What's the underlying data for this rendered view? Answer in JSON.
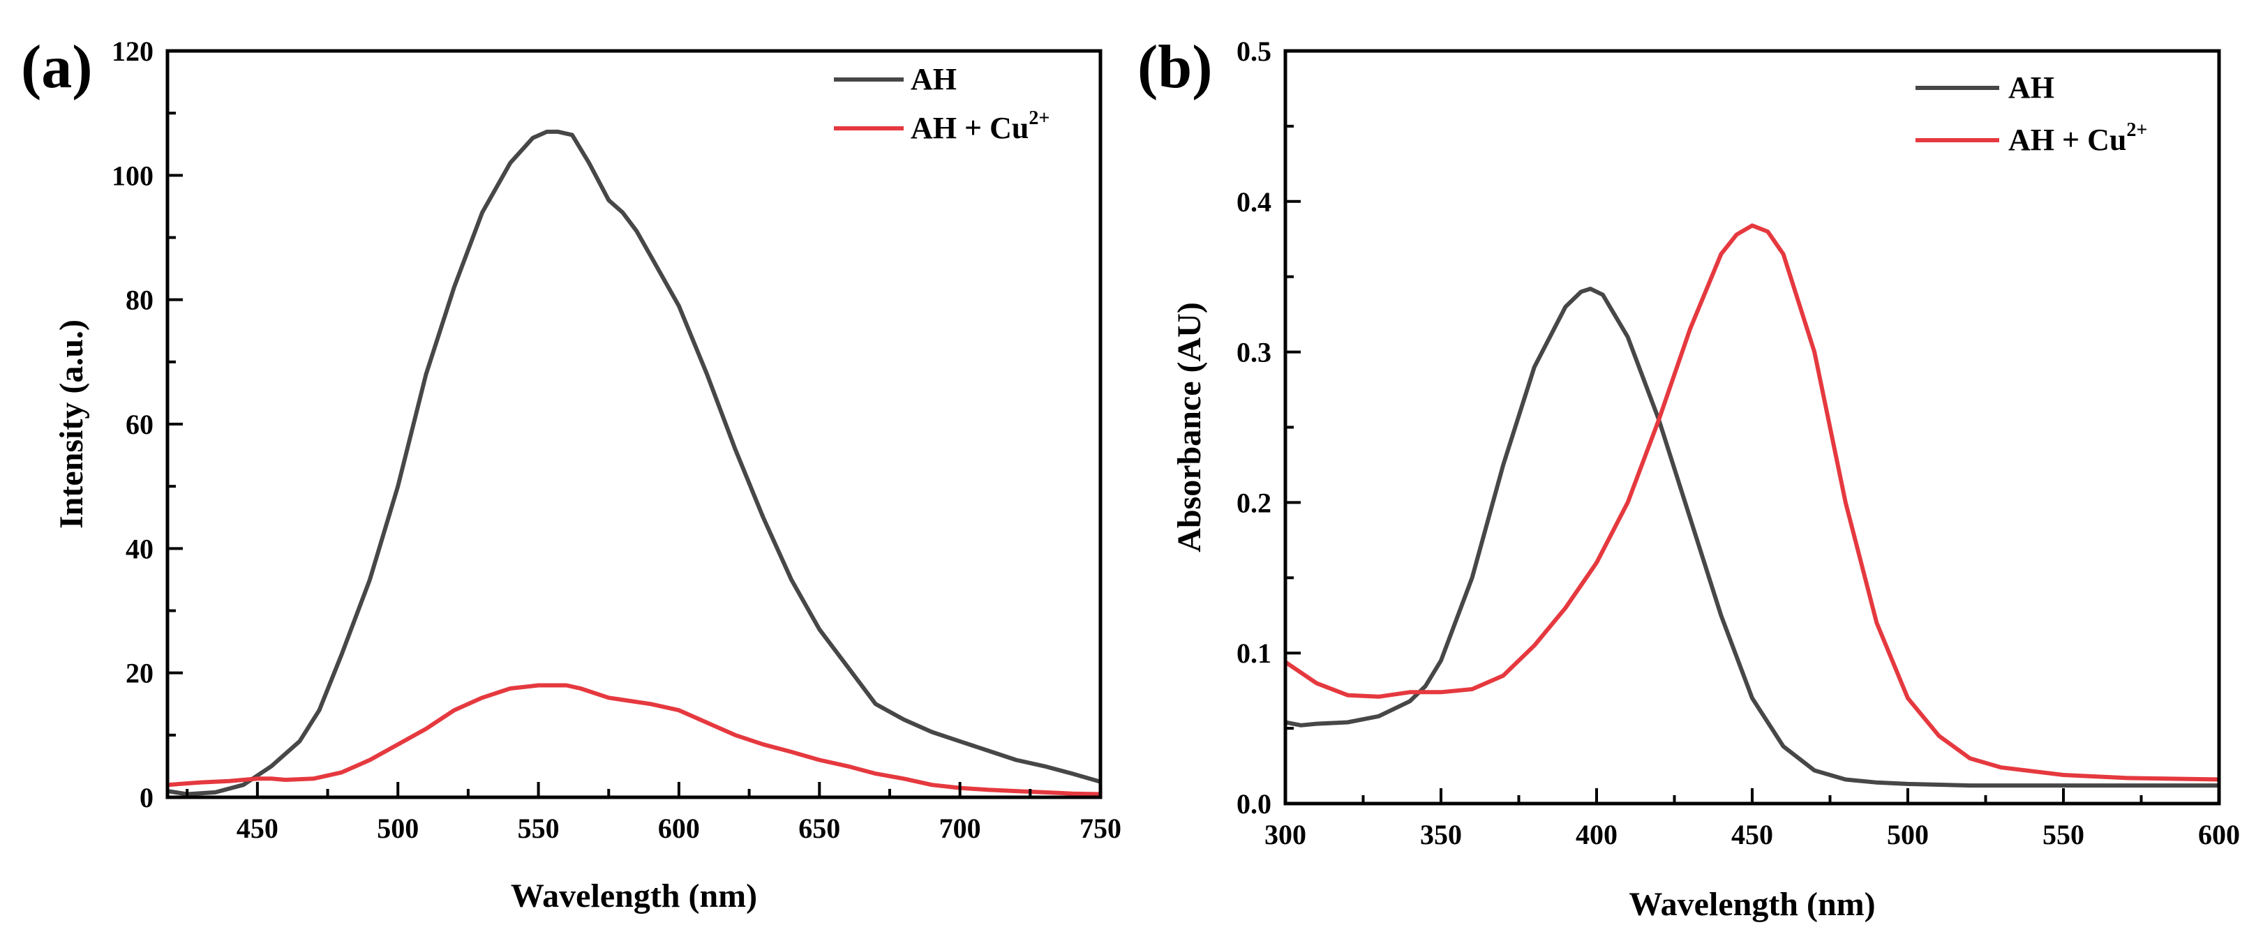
{
  "chart_data": [
    {
      "type": "line",
      "panel_label": "(a)",
      "title": "",
      "xlabel": "Wavelength (nm)",
      "ylabel": "Intensity (a.u.)",
      "xlim": [
        418,
        750
      ],
      "ylim": [
        0,
        120
      ],
      "x_ticks": [
        450,
        500,
        550,
        600,
        650,
        700,
        750
      ],
      "y_ticks": [
        0,
        20,
        40,
        60,
        80,
        100,
        120
      ],
      "x_minor_step": 25,
      "y_minor_step": 10,
      "legend_position": "top-right",
      "series": [
        {
          "name": "AH",
          "name_sup": "",
          "color": "#474747",
          "x": [
            418,
            425,
            435,
            445,
            455,
            465,
            472,
            480,
            490,
            500,
            510,
            520,
            530,
            540,
            548,
            553,
            557,
            562,
            568,
            575,
            580,
            585,
            590,
            600,
            610,
            620,
            630,
            640,
            650,
            660,
            670,
            680,
            690,
            700,
            710,
            720,
            730,
            740,
            750
          ],
          "y": [
            1,
            0.5,
            0.8,
            2,
            5,
            9,
            14,
            23,
            35,
            50,
            68,
            82,
            94,
            102,
            106,
            107,
            107,
            106.5,
            102,
            96,
            94,
            91,
            87,
            79,
            68,
            56,
            45,
            35,
            27,
            21,
            15,
            12.5,
            10.5,
            9,
            7.5,
            6,
            5,
            3.8,
            2.5
          ]
        },
        {
          "name": "AH + Cu",
          "name_sup": "2+",
          "color": "#e5393f",
          "x": [
            418,
            430,
            440,
            450,
            455,
            460,
            470,
            480,
            490,
            500,
            510,
            520,
            530,
            540,
            550,
            555,
            560,
            565,
            575,
            590,
            600,
            610,
            620,
            630,
            640,
            650,
            660,
            670,
            680,
            690,
            700,
            710,
            720,
            730,
            740,
            750
          ],
          "y": [
            2,
            2.4,
            2.6,
            3,
            3,
            2.8,
            3,
            4,
            6,
            8.5,
            11,
            14,
            16,
            17.5,
            18,
            18,
            18,
            17.5,
            16,
            15,
            14,
            12,
            10,
            8.5,
            7.3,
            6,
            5,
            3.8,
            3,
            2,
            1.5,
            1.2,
            1,
            0.8,
            0.6,
            0.5
          ]
        }
      ]
    },
    {
      "type": "line",
      "panel_label": "(b)",
      "title": "",
      "xlabel": "Wavelength (nm)",
      "ylabel": "Absorbance (AU)",
      "xlim": [
        300,
        600
      ],
      "ylim": [
        0,
        0.5
      ],
      "x_ticks": [
        300,
        350,
        400,
        450,
        500,
        550,
        600
      ],
      "y_ticks": [
        0.0,
        0.1,
        0.2,
        0.3,
        0.4,
        0.5
      ],
      "x_minor_step": 25,
      "y_minor_step": 0.05,
      "legend_position": "top-right",
      "series": [
        {
          "name": "AH",
          "name_sup": "",
          "color": "#474747",
          "x": [
            300,
            305,
            310,
            320,
            330,
            340,
            345,
            350,
            360,
            370,
            380,
            390,
            395,
            398,
            402,
            410,
            420,
            430,
            440,
            450,
            460,
            470,
            480,
            490,
            500,
            520,
            550,
            580,
            600
          ],
          "y": [
            0.054,
            0.052,
            0.053,
            0.054,
            0.058,
            0.068,
            0.078,
            0.095,
            0.15,
            0.225,
            0.29,
            0.33,
            0.34,
            0.342,
            0.338,
            0.31,
            0.255,
            0.19,
            0.125,
            0.07,
            0.038,
            0.022,
            0.016,
            0.014,
            0.013,
            0.012,
            0.012,
            0.012,
            0.012
          ]
        },
        {
          "name": "AH + Cu",
          "name_sup": "2+",
          "color": "#e5393f",
          "x": [
            300,
            310,
            320,
            330,
            340,
            350,
            360,
            370,
            380,
            390,
            400,
            410,
            420,
            430,
            440,
            445,
            450,
            455,
            460,
            470,
            480,
            490,
            500,
            510,
            520,
            530,
            550,
            570,
            600
          ],
          "y": [
            0.094,
            0.08,
            0.072,
            0.071,
            0.074,
            0.074,
            0.076,
            0.085,
            0.105,
            0.13,
            0.16,
            0.2,
            0.255,
            0.315,
            0.365,
            0.378,
            0.384,
            0.38,
            0.365,
            0.3,
            0.2,
            0.12,
            0.07,
            0.045,
            0.03,
            0.024,
            0.019,
            0.017,
            0.016
          ]
        }
      ]
    }
  ]
}
